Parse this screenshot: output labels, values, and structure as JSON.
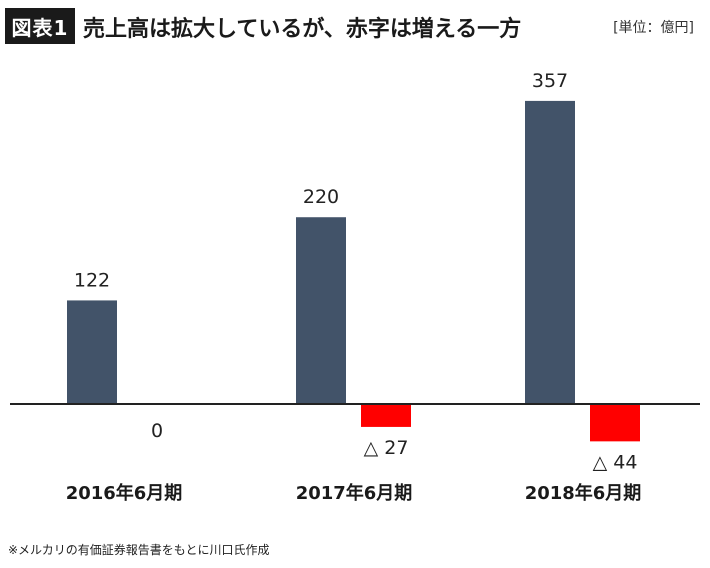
{
  "header": {
    "badge": "図表1",
    "title": "売上高は拡大しているが、赤字は増える一方",
    "unit": "[単位：億円]"
  },
  "source_note": "※メルカリの有価証券報告書をもとに川口氏作成",
  "colors": {
    "revenue": "#425369",
    "profit_negative": "#ff0000",
    "badge_bg": "#1a1a1a",
    "baseline": "#222222"
  },
  "chart_data": {
    "type": "bar",
    "categories": [
      "2016年6月期",
      "2017年6月期",
      "2018年6月期"
    ],
    "series": [
      {
        "values": [
          122,
          220,
          357
        ],
        "labels": [
          "122",
          "220",
          "357"
        ]
      },
      {
        "values": [
          0,
          -27,
          -44
        ],
        "labels": [
          "0",
          "△ 27",
          "△ 44"
        ]
      }
    ],
    "ylim": [
      -60,
      380
    ],
    "grid": false,
    "legend": "none"
  }
}
